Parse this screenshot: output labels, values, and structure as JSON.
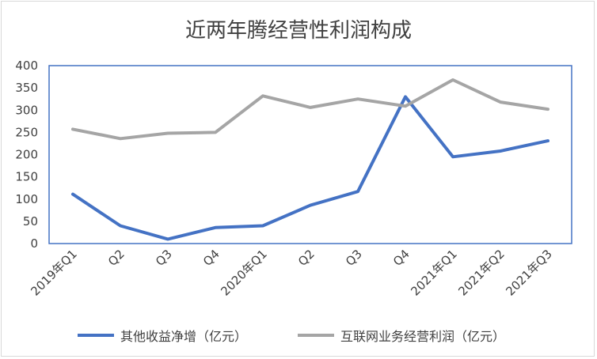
{
  "chart_data": {
    "type": "line",
    "title": "近两年腾经营性利润构成",
    "categories": [
      "2019年Q1",
      "Q2",
      "Q3",
      "Q4",
      "2020年Q1",
      "Q2",
      "Q3",
      "Q4",
      "2021年Q1",
      "2021年Q2",
      "2021年Q3"
    ],
    "series": [
      {
        "name": "其他收益净增（亿元）",
        "color": "#4472c4",
        "values": [
          111,
          40,
          10,
          36,
          40,
          86,
          117,
          330,
          195,
          208,
          231
        ]
      },
      {
        "name": "互联网业务经营利润（亿元）",
        "color": "#a5a5a5",
        "values": [
          257,
          236,
          248,
          250,
          332,
          306,
          325,
          309,
          368,
          318,
          302
        ]
      }
    ],
    "ylim": [
      0,
      400
    ],
    "yticks": [
      0,
      50,
      100,
      150,
      200,
      250,
      300,
      350,
      400
    ],
    "grid": false,
    "legend_position": "bottom",
    "frame_color": "#4472c4"
  }
}
